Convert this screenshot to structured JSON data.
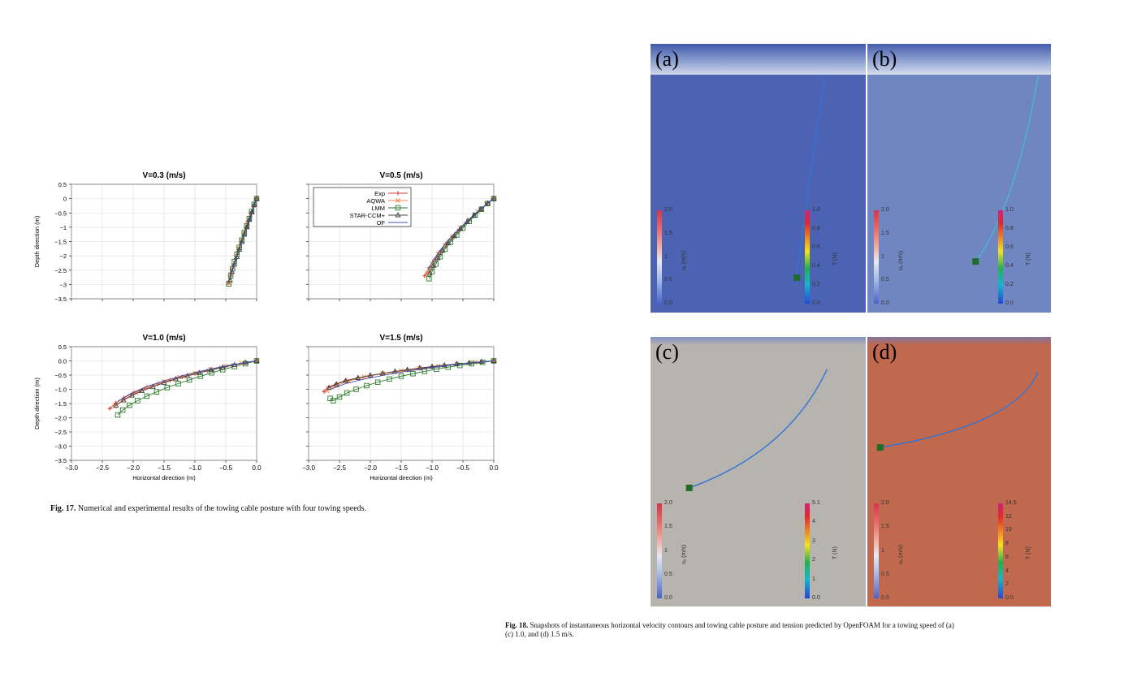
{
  "figure17": {
    "caption_label": "Fig. 17.",
    "caption_text": "Numerical and experimental results of the towing cable posture with four towing speeds.",
    "legend": [
      "Exp",
      "AQWA",
      "LMM",
      "STAR-CCM+",
      "OF"
    ],
    "colors": {
      "Exp": "#d0342c",
      "AQWA": "#f08a4b",
      "LMM": "#2a7a2a",
      "STAR-CCM+": "#444444",
      "OF": "#3b4fb8"
    }
  },
  "chart_data": [
    {
      "type": "line",
      "title": "V=0.3 (m/s)",
      "xlabel": "",
      "ylabel": "Depth direction (m)",
      "xlim": [
        -3.0,
        0.0
      ],
      "ylim": [
        -3.5,
        0.5
      ],
      "xticks": [
        "−3.0",
        "−2.5",
        "−2.0",
        "−1.5",
        "−1.0",
        "−0.5",
        "0.0"
      ],
      "yticks": [
        "0.5",
        "0",
        "−0.5",
        "−1",
        "−1.5",
        "−2",
        "−2.5",
        "−3",
        "−3.5"
      ],
      "grid": true,
      "series": [
        {
          "name": "Exp",
          "x": [
            0.0,
            -0.03,
            -0.07,
            -0.11,
            -0.15,
            -0.19,
            -0.23,
            -0.27,
            -0.31,
            -0.35,
            -0.39,
            -0.43,
            -0.46
          ],
          "y": [
            0.0,
            -0.2,
            -0.45,
            -0.7,
            -0.95,
            -1.2,
            -1.45,
            -1.7,
            -1.95,
            -2.2,
            -2.45,
            -2.7,
            -2.95
          ]
        },
        {
          "name": "AQWA",
          "x": [
            0.0,
            -0.05,
            -0.1,
            -0.15,
            -0.2,
            -0.25,
            -0.3,
            -0.34,
            -0.38,
            -0.42,
            -0.45
          ],
          "y": [
            0.0,
            -0.25,
            -0.55,
            -0.85,
            -1.15,
            -1.45,
            -1.75,
            -2.05,
            -2.35,
            -2.65,
            -2.95
          ]
        },
        {
          "name": "LMM",
          "x": [
            0.0,
            -0.04,
            -0.08,
            -0.12,
            -0.16,
            -0.2,
            -0.24,
            -0.28,
            -0.32,
            -0.36,
            -0.39,
            -0.42,
            -0.45
          ],
          "y": [
            0.0,
            -0.2,
            -0.45,
            -0.7,
            -0.95,
            -1.2,
            -1.45,
            -1.7,
            -1.95,
            -2.2,
            -2.45,
            -2.7,
            -2.98
          ]
        },
        {
          "name": "STAR-CCM+",
          "x": [
            0.0,
            -0.04,
            -0.08,
            -0.12,
            -0.16,
            -0.2,
            -0.24,
            -0.28,
            -0.32,
            -0.36,
            -0.4,
            -0.43
          ],
          "y": [
            0.0,
            -0.22,
            -0.48,
            -0.74,
            -1.0,
            -1.26,
            -1.52,
            -1.78,
            -2.04,
            -2.3,
            -2.56,
            -2.85
          ]
        },
        {
          "name": "OF",
          "x": [
            0.0,
            -0.05,
            -0.1,
            -0.16,
            -0.22,
            -0.28,
            -0.34,
            -0.39,
            -0.44
          ],
          "y": [
            0.0,
            -0.35,
            -0.7,
            -1.05,
            -1.4,
            -1.75,
            -2.1,
            -2.45,
            -2.8
          ]
        }
      ]
    },
    {
      "type": "line",
      "title": "V=0.5 (m/s)",
      "xlabel": "",
      "ylabel": "",
      "xlim": [
        -3.0,
        0.0
      ],
      "ylim": [
        -3.5,
        0.5
      ],
      "xticks": [
        "−3.0",
        "−2.5",
        "−2.0",
        "−1.5",
        "−1.0",
        "−0.5",
        "0.0"
      ],
      "yticks": [],
      "grid": true,
      "legend_position": "top-left",
      "series": [
        {
          "name": "Exp",
          "x": [
            0.0,
            -0.1,
            -0.2,
            -0.32,
            -0.44,
            -0.56,
            -0.67,
            -0.78,
            -0.88,
            -0.97,
            -1.05,
            -1.12
          ],
          "y": [
            0.0,
            -0.15,
            -0.35,
            -0.58,
            -0.82,
            -1.07,
            -1.33,
            -1.6,
            -1.87,
            -2.15,
            -2.42,
            -2.7
          ]
        },
        {
          "name": "AQWA",
          "x": [
            0.0,
            -0.12,
            -0.26,
            -0.4,
            -0.54,
            -0.67,
            -0.79,
            -0.9,
            -1.0,
            -1.08
          ],
          "y": [
            0.0,
            -0.2,
            -0.45,
            -0.73,
            -1.02,
            -1.32,
            -1.63,
            -1.95,
            -2.28,
            -2.62
          ]
        },
        {
          "name": "LMM",
          "x": [
            0.0,
            -0.1,
            -0.2,
            -0.3,
            -0.4,
            -0.5,
            -0.6,
            -0.7,
            -0.79,
            -0.87,
            -0.94,
            -1.0,
            -1.05
          ],
          "y": [
            0.0,
            -0.17,
            -0.37,
            -0.58,
            -0.8,
            -1.03,
            -1.27,
            -1.52,
            -1.77,
            -2.03,
            -2.29,
            -2.55,
            -2.8
          ]
        },
        {
          "name": "STAR-CCM+",
          "x": [
            0.0,
            -0.1,
            -0.21,
            -0.32,
            -0.43,
            -0.54,
            -0.64,
            -0.74,
            -0.83,
            -0.91,
            -0.98,
            -1.04
          ],
          "y": [
            0.0,
            -0.17,
            -0.37,
            -0.59,
            -0.82,
            -1.06,
            -1.31,
            -1.56,
            -1.82,
            -2.08,
            -2.35,
            -2.62
          ]
        },
        {
          "name": "OF",
          "x": [
            0.0,
            -0.15,
            -0.3,
            -0.45,
            -0.6,
            -0.74,
            -0.86,
            -0.97,
            -1.06
          ],
          "y": [
            0.0,
            -0.25,
            -0.52,
            -0.82,
            -1.13,
            -1.45,
            -1.78,
            -2.12,
            -2.47
          ]
        }
      ]
    },
    {
      "type": "line",
      "title": "V=1.0 (m/s)",
      "xlabel": "Horizontal direction (m)",
      "ylabel": "Depth direction (m)",
      "xlim": [
        -3.0,
        0.0
      ],
      "ylim": [
        -3.5,
        0.5
      ],
      "xticks": [
        "−3.0",
        "−2.5",
        "−2.0",
        "−1.5",
        "−1.0",
        "−0.5",
        "0.0"
      ],
      "yticks": [
        "0.5",
        "0.0",
        "−0.5",
        "−1.0",
        "−1.5",
        "−2.0",
        "−2.5",
        "−3.0",
        "−3.5"
      ],
      "grid": true,
      "series": [
        {
          "name": "Exp",
          "x": [
            0.0,
            -0.2,
            -0.4,
            -0.6,
            -0.8,
            -1.0,
            -1.2,
            -1.4,
            -1.6,
            -1.8,
            -2.0,
            -2.15,
            -2.28,
            -2.38
          ],
          "y": [
            0.0,
            -0.07,
            -0.16,
            -0.25,
            -0.35,
            -0.45,
            -0.56,
            -0.68,
            -0.81,
            -0.96,
            -1.13,
            -1.3,
            -1.48,
            -1.68
          ]
        },
        {
          "name": "AQWA",
          "x": [
            0.0,
            -0.25,
            -0.5,
            -0.75,
            -1.0,
            -1.25,
            -1.5,
            -1.75,
            -1.95,
            -2.15,
            -2.3
          ],
          "y": [
            0.0,
            -0.08,
            -0.18,
            -0.3,
            -0.43,
            -0.57,
            -0.73,
            -0.92,
            -1.12,
            -1.36,
            -1.6
          ]
        },
        {
          "name": "LMM",
          "x": [
            0.0,
            -0.18,
            -0.36,
            -0.55,
            -0.73,
            -0.91,
            -1.09,
            -1.27,
            -1.45,
            -1.62,
            -1.78,
            -1.93,
            -2.06,
            -2.17,
            -2.25
          ],
          "y": [
            0.0,
            -0.1,
            -0.2,
            -0.31,
            -0.42,
            -0.54,
            -0.67,
            -0.8,
            -0.94,
            -1.09,
            -1.24,
            -1.4,
            -1.56,
            -1.73,
            -1.9
          ]
        },
        {
          "name": "STAR-CCM+",
          "x": [
            0.0,
            -0.18,
            -0.36,
            -0.55,
            -0.74,
            -0.93,
            -1.12,
            -1.31,
            -1.5,
            -1.68,
            -1.86,
            -2.02,
            -2.16,
            -2.28
          ],
          "y": [
            0.0,
            -0.06,
            -0.14,
            -0.23,
            -0.32,
            -0.42,
            -0.53,
            -0.64,
            -0.77,
            -0.91,
            -1.06,
            -1.22,
            -1.39,
            -1.57
          ]
        },
        {
          "name": "OF",
          "x": [
            0.0,
            -0.3,
            -0.6,
            -0.9,
            -1.2,
            -1.5,
            -1.8,
            -2.05,
            -2.25
          ],
          "y": [
            0.0,
            -0.1,
            -0.22,
            -0.36,
            -0.52,
            -0.7,
            -0.92,
            -1.16,
            -1.42
          ]
        }
      ]
    },
    {
      "type": "line",
      "title": "V=1.5 (m/s)",
      "xlabel": "Horizontal direction (m)",
      "ylabel": "",
      "xlim": [
        -3.0,
        0.0
      ],
      "ylim": [
        -3.5,
        0.5
      ],
      "xticks": [
        "−3.0",
        "−2.5",
        "−2.0",
        "−1.5",
        "−1.0",
        "−0.5",
        "0.0"
      ],
      "yticks": [],
      "grid": true,
      "series": [
        {
          "name": "Exp",
          "x": [
            0.0,
            -0.2,
            -0.4,
            -0.6,
            -0.8,
            -1.0,
            -1.2,
            -1.4,
            -1.6,
            -1.8,
            -2.0,
            -2.2,
            -2.4,
            -2.55,
            -2.68,
            -2.75
          ],
          "y": [
            0.0,
            -0.04,
            -0.08,
            -0.12,
            -0.17,
            -0.22,
            -0.27,
            -0.33,
            -0.39,
            -0.45,
            -0.52,
            -0.6,
            -0.69,
            -0.8,
            -0.93,
            -1.08
          ]
        },
        {
          "name": "AQWA",
          "x": [
            0.0,
            -0.3,
            -0.6,
            -0.9,
            -1.2,
            -1.5,
            -1.8,
            -2.1,
            -2.35,
            -2.55,
            -2.7
          ],
          "y": [
            0.0,
            -0.05,
            -0.11,
            -0.18,
            -0.26,
            -0.35,
            -0.45,
            -0.57,
            -0.71,
            -0.87,
            -1.05
          ]
        },
        {
          "name": "LMM",
          "x": [
            0.0,
            -0.18,
            -0.36,
            -0.55,
            -0.74,
            -0.93,
            -1.12,
            -1.31,
            -1.5,
            -1.69,
            -1.88,
            -2.06,
            -2.23,
            -2.38,
            -2.5,
            -2.6,
            -2.65
          ],
          "y": [
            0.0,
            -0.05,
            -0.1,
            -0.16,
            -0.22,
            -0.29,
            -0.37,
            -0.45,
            -0.54,
            -0.64,
            -0.75,
            -0.87,
            -1.0,
            -1.13,
            -1.27,
            -1.4,
            -1.32
          ]
        },
        {
          "name": "STAR-CCM+",
          "x": [
            0.0,
            -0.2,
            -0.4,
            -0.6,
            -0.8,
            -1.0,
            -1.2,
            -1.4,
            -1.6,
            -1.8,
            -2.0,
            -2.2,
            -2.4,
            -2.55,
            -2.67
          ],
          "y": [
            0.0,
            -0.03,
            -0.07,
            -0.11,
            -0.15,
            -0.2,
            -0.25,
            -0.31,
            -0.37,
            -0.44,
            -0.51,
            -0.6,
            -0.7,
            -0.82,
            -0.95
          ]
        },
        {
          "name": "OF",
          "x": [
            0.0,
            -0.35,
            -0.7,
            -1.05,
            -1.4,
            -1.75,
            -2.1,
            -2.4,
            -2.62
          ],
          "y": [
            0.0,
            -0.07,
            -0.15,
            -0.25,
            -0.36,
            -0.49,
            -0.64,
            -0.8,
            -0.98
          ]
        }
      ]
    }
  ],
  "figure18": {
    "caption_label": "Fig. 18.",
    "caption_line1": "Snapshots of instantaneous horizontal velocity contours and towing cable posture and tension predicted by OpenFOAM for a towing speed of (a)",
    "caption_line2": "(c) 1.0, and (d) 1.5 m/s.",
    "panels": [
      {
        "label": "(a)",
        "bg": "#4c63b4",
        "vel_ticks": [
          "2.0",
          "1.5",
          "1",
          "0.5",
          "0.0"
        ],
        "vel_title": "uₓ (m/s)",
        "ten_ticks": [
          "1.0",
          "0.8",
          "0.6",
          "0.4",
          "0.2",
          "0.0"
        ],
        "ten_title": "T (N)"
      },
      {
        "label": "(b)",
        "bg": "#6f86c1",
        "vel_ticks": [
          "2.0",
          "1.5",
          "1",
          "0.5",
          "0.0"
        ],
        "vel_title": "uₓ (m/s)",
        "ten_ticks": [
          "1.0",
          "0.8",
          "0.6",
          "0.4",
          "0.2",
          "0.0"
        ],
        "ten_title": "T (N)"
      },
      {
        "label": "(c)",
        "bg": "#b7b3ae",
        "vel_ticks": [
          "2.0",
          "1.5",
          "1",
          "0.5",
          "0.0"
        ],
        "vel_title": "uₓ (m/s)",
        "ten_ticks": [
          "5.1",
          "4",
          "3",
          "2",
          "1",
          "0.0"
        ],
        "ten_title": "T (N)"
      },
      {
        "label": "(d)",
        "bg": "#c0694e",
        "vel_ticks": [
          "2.0",
          "1.5",
          "1",
          "0.5",
          "0.0"
        ],
        "vel_title": "uₓ (m/s)",
        "ten_ticks": [
          "14.5",
          "12",
          "10",
          "8",
          "6",
          "4",
          "2",
          "0.0"
        ],
        "ten_title": "T (N)"
      }
    ]
  }
}
